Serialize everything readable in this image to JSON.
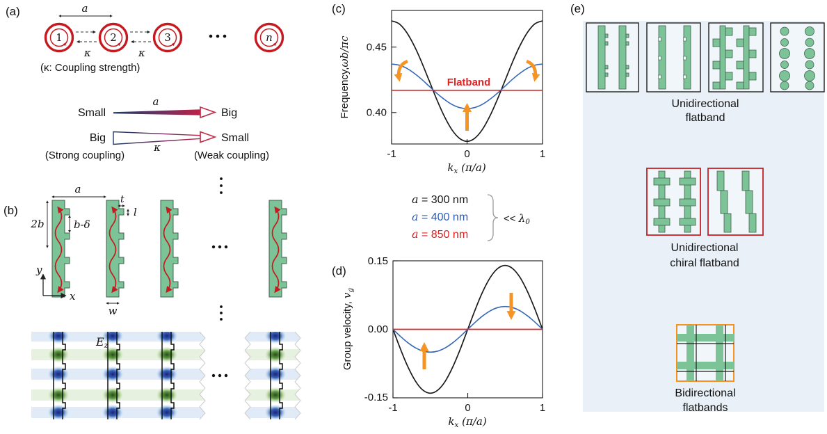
{
  "colors": {
    "green": "#7cc498",
    "panel_bg": "#e9f0f8",
    "box_fill": "#f1f6fb",
    "red": "#c41a20",
    "red_box": "#c42026",
    "orange": "#f59422",
    "curve_black": "#1a1a1a",
    "curve_blue": "#3468b4",
    "curve_red": "#e02424"
  },
  "panels": {
    "a": {
      "label": "(a)",
      "dim_symbol": "a",
      "kappa1": "κ",
      "kappa2": "κ",
      "caption": "(κ: Coupling strength)",
      "resonators": [
        "1",
        "2",
        "3",
        "n"
      ],
      "row1": {
        "left": "Small",
        "symbol": "a",
        "right": "Big"
      },
      "row2": {
        "left": "Big",
        "symbol": "κ",
        "right": "Small"
      },
      "strong": "(Strong coupling)",
      "weak": "(Weak coupling)"
    },
    "b": {
      "label": "(b)",
      "dim_a": "a",
      "dim_2b": "2b",
      "dim_bdelta": "b-δ",
      "dim_t": "t",
      "dim_l": "l",
      "dim_w": "w",
      "axis_x": "x",
      "axis_y": "y",
      "field_label": "E",
      "field_sub": "z"
    },
    "c": {
      "label": "(c)",
      "ylabel_prefix": "Frequency,",
      "ylabel_math": "ωb/πc",
      "xlabel_k": "k",
      "xlabel_sub": "x",
      "xlabel_rest": " (π/a)",
      "ytick_top": "0.45",
      "ytick_bottom": "0.40",
      "xticks": [
        "-1",
        "0",
        "1"
      ],
      "flatband_label": "Flatband",
      "flatband_color": "#e02424"
    },
    "legend": {
      "rows": [
        {
          "symbol": "a",
          "text": " = 300 nm",
          "color": "#1a1a1a"
        },
        {
          "symbol": "a",
          "text": " = 400 nm",
          "color": "#2e5cb8"
        },
        {
          "symbol": "a",
          "text": " = 850 nm",
          "color": "#e01f1f"
        }
      ],
      "condition_lt": "<< ",
      "condition_sym": "λ",
      "condition_sub": "0"
    },
    "d": {
      "label": "(d)",
      "ylabel_prefix": "Group velocity, ",
      "ylabel_math": "v",
      "ylabel_sub": "g",
      "yticks": [
        "0.15",
        "0.00",
        "-0.15"
      ],
      "xticks": [
        "-1",
        "0",
        "1"
      ],
      "xlabel_k": "k",
      "xlabel_sub": "x",
      "xlabel_rest": " (π/a)"
    },
    "e": {
      "label": "(e)",
      "caption_top_1": "Unidirectional",
      "caption_top_2": "flatband",
      "caption_mid_1": "Unidirectional",
      "caption_mid_2": "chiral flatband",
      "caption_bot_1": "Bidirectional",
      "caption_bot_2": "flatbands"
    }
  },
  "chart_data": [
    {
      "id": "c",
      "type": "line",
      "title": "Photonic band dispersion",
      "xlabel": "k_x (π/a)",
      "ylabel": "Frequency, ωb/πc",
      "xlim": [
        -1,
        1
      ],
      "ylim": [
        0.376,
        0.478
      ],
      "xticks": [
        -1,
        0,
        1
      ],
      "yticks": [
        0.4,
        0.45
      ],
      "grid": false,
      "annotations": [
        "Flatband"
      ],
      "series": [
        {
          "name": "a = 300 nm",
          "color": "#1a1a1a",
          "width": 1.7,
          "k_start": -1,
          "k_step": 0.1,
          "values": [
            0.47,
            0.4678,
            0.4612,
            0.451,
            0.4382,
            0.424,
            0.4098,
            0.397,
            0.3868,
            0.3803,
            0.378,
            0.3803,
            0.3868,
            0.397,
            0.4098,
            0.424,
            0.4382,
            0.451,
            0.4612,
            0.4678,
            0.47
          ]
        },
        {
          "name": "a = 400 nm",
          "color": "#3468b4",
          "width": 1.6,
          "k_start": -1,
          "k_step": 0.1,
          "values": [
            0.437,
            0.4362,
            0.4338,
            0.43,
            0.4253,
            0.42,
            0.4147,
            0.41,
            0.4062,
            0.4038,
            0.403,
            0.4038,
            0.4062,
            0.41,
            0.4147,
            0.42,
            0.4253,
            0.43,
            0.4338,
            0.4362,
            0.437
          ]
        },
        {
          "name": "a = 850 nm (flatband)",
          "color": "#e02424",
          "width": 1.7,
          "k_start": -1,
          "k_step": 2,
          "values": [
            0.417,
            0.417
          ]
        }
      ]
    },
    {
      "id": "d",
      "type": "line",
      "title": "Group velocity",
      "xlabel": "k_x (π/a)",
      "ylabel": "Group velocity, v_g",
      "xlim": [
        -1,
        1
      ],
      "ylim": [
        -0.15,
        0.15
      ],
      "xticks": [
        -1,
        0,
        1
      ],
      "yticks": [
        -0.15,
        0,
        0.15
      ],
      "grid": false,
      "series": [
        {
          "name": "a = 300 nm",
          "color": "#1a1a1a",
          "width": 1.7,
          "k_start": -1,
          "k_step": 0.1,
          "values": [
            0,
            -0.0433,
            -0.0823,
            -0.1133,
            -0.1331,
            -0.14,
            -0.1331,
            -0.1133,
            -0.0823,
            -0.0433,
            0,
            0.0433,
            0.0823,
            0.1133,
            0.1331,
            0.14,
            0.1331,
            0.1133,
            0.0823,
            0.0433,
            0
          ]
        },
        {
          "name": "a = 400 nm",
          "color": "#3468b4",
          "width": 1.6,
          "k_start": -1,
          "k_step": 0.1,
          "values": [
            0,
            -0.0155,
            -0.0294,
            -0.0405,
            -0.0476,
            -0.05,
            -0.0476,
            -0.0405,
            -0.0294,
            -0.0155,
            0,
            0.0155,
            0.0294,
            0.0405,
            0.0476,
            0.05,
            0.0476,
            0.0405,
            0.0294,
            0.0155,
            0
          ]
        },
        {
          "name": "a = 850 nm (flatband)",
          "color": "#e02424",
          "width": 1.7,
          "k_start": -1,
          "k_step": 2,
          "values": [
            0,
            0
          ]
        }
      ]
    }
  ]
}
